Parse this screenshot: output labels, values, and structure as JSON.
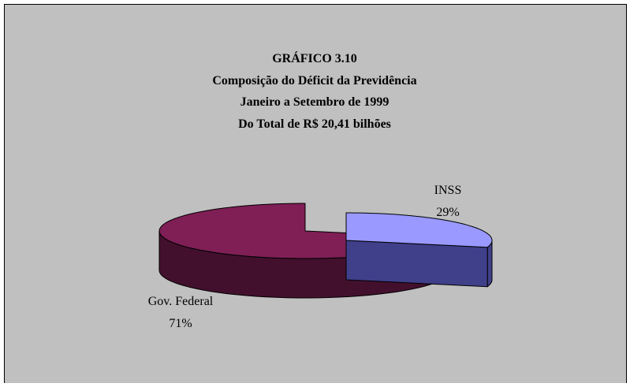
{
  "chart_data": {
    "type": "pie",
    "title_lines": [
      "GRÁFICO 3.10",
      "Composição do Déficit da Previdência",
      "Janeiro a Setembro de 1999",
      "Do Total de R$ 20,41 bilhões"
    ],
    "slices": [
      {
        "name": "INSS",
        "value": 29,
        "value_label": "29%",
        "color": "#9999ff",
        "side_color": "#3f3f8a"
      },
      {
        "name": "Gov. Federal",
        "value": 71,
        "value_label": "71%",
        "color": "#7f1f56",
        "side_color": "#42102d"
      }
    ],
    "exploded": true,
    "three_d": true,
    "background_color": "#c0c0c0"
  }
}
